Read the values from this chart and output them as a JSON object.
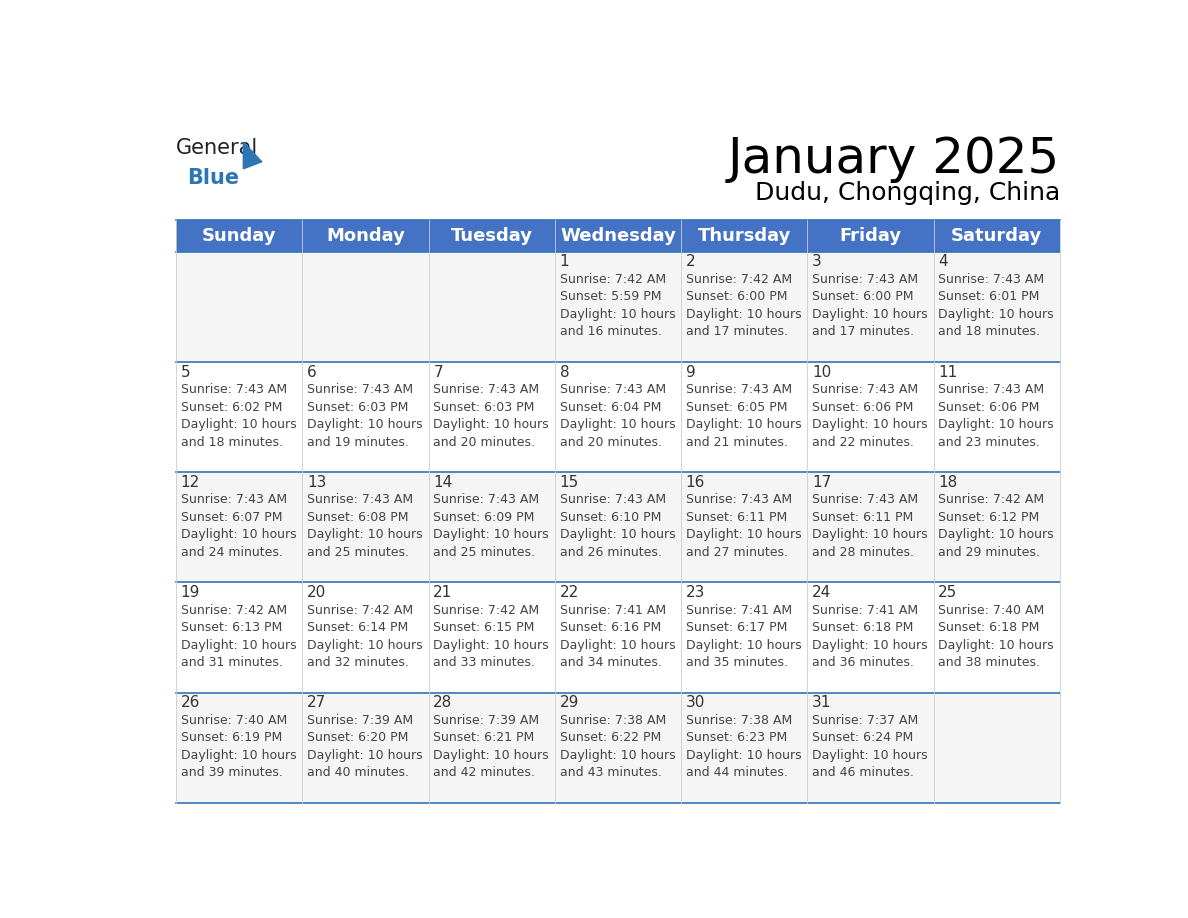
{
  "title": "January 2025",
  "subtitle": "Dudu, Chongqing, China",
  "header_color": "#4472C4",
  "header_text_color": "#FFFFFF",
  "cell_bg_even": "#F5F5F5",
  "cell_bg_odd": "#FFFFFF",
  "day_headers": [
    "Sunday",
    "Monday",
    "Tuesday",
    "Wednesday",
    "Thursday",
    "Friday",
    "Saturday"
  ],
  "title_fontsize": 36,
  "subtitle_fontsize": 18,
  "header_fontsize": 13,
  "cell_fontsize": 9,
  "day_number_fontsize": 11,
  "logo_color1": "#222222",
  "logo_color2": "#2E75B6",
  "logo_triangle_color": "#2E75B6",
  "row_divider_color": "#2E75B6",
  "col_divider_color": "#CCCCCC",
  "weeks": [
    [
      {
        "day": null,
        "text": ""
      },
      {
        "day": null,
        "text": ""
      },
      {
        "day": null,
        "text": ""
      },
      {
        "day": 1,
        "text": "Sunrise: 7:42 AM\nSunset: 5:59 PM\nDaylight: 10 hours\nand 16 minutes."
      },
      {
        "day": 2,
        "text": "Sunrise: 7:42 AM\nSunset: 6:00 PM\nDaylight: 10 hours\nand 17 minutes."
      },
      {
        "day": 3,
        "text": "Sunrise: 7:43 AM\nSunset: 6:00 PM\nDaylight: 10 hours\nand 17 minutes."
      },
      {
        "day": 4,
        "text": "Sunrise: 7:43 AM\nSunset: 6:01 PM\nDaylight: 10 hours\nand 18 minutes."
      }
    ],
    [
      {
        "day": 5,
        "text": "Sunrise: 7:43 AM\nSunset: 6:02 PM\nDaylight: 10 hours\nand 18 minutes."
      },
      {
        "day": 6,
        "text": "Sunrise: 7:43 AM\nSunset: 6:03 PM\nDaylight: 10 hours\nand 19 minutes."
      },
      {
        "day": 7,
        "text": "Sunrise: 7:43 AM\nSunset: 6:03 PM\nDaylight: 10 hours\nand 20 minutes."
      },
      {
        "day": 8,
        "text": "Sunrise: 7:43 AM\nSunset: 6:04 PM\nDaylight: 10 hours\nand 20 minutes."
      },
      {
        "day": 9,
        "text": "Sunrise: 7:43 AM\nSunset: 6:05 PM\nDaylight: 10 hours\nand 21 minutes."
      },
      {
        "day": 10,
        "text": "Sunrise: 7:43 AM\nSunset: 6:06 PM\nDaylight: 10 hours\nand 22 minutes."
      },
      {
        "day": 11,
        "text": "Sunrise: 7:43 AM\nSunset: 6:06 PM\nDaylight: 10 hours\nand 23 minutes."
      }
    ],
    [
      {
        "day": 12,
        "text": "Sunrise: 7:43 AM\nSunset: 6:07 PM\nDaylight: 10 hours\nand 24 minutes."
      },
      {
        "day": 13,
        "text": "Sunrise: 7:43 AM\nSunset: 6:08 PM\nDaylight: 10 hours\nand 25 minutes."
      },
      {
        "day": 14,
        "text": "Sunrise: 7:43 AM\nSunset: 6:09 PM\nDaylight: 10 hours\nand 25 minutes."
      },
      {
        "day": 15,
        "text": "Sunrise: 7:43 AM\nSunset: 6:10 PM\nDaylight: 10 hours\nand 26 minutes."
      },
      {
        "day": 16,
        "text": "Sunrise: 7:43 AM\nSunset: 6:11 PM\nDaylight: 10 hours\nand 27 minutes."
      },
      {
        "day": 17,
        "text": "Sunrise: 7:43 AM\nSunset: 6:11 PM\nDaylight: 10 hours\nand 28 minutes."
      },
      {
        "day": 18,
        "text": "Sunrise: 7:42 AM\nSunset: 6:12 PM\nDaylight: 10 hours\nand 29 minutes."
      }
    ],
    [
      {
        "day": 19,
        "text": "Sunrise: 7:42 AM\nSunset: 6:13 PM\nDaylight: 10 hours\nand 31 minutes."
      },
      {
        "day": 20,
        "text": "Sunrise: 7:42 AM\nSunset: 6:14 PM\nDaylight: 10 hours\nand 32 minutes."
      },
      {
        "day": 21,
        "text": "Sunrise: 7:42 AM\nSunset: 6:15 PM\nDaylight: 10 hours\nand 33 minutes."
      },
      {
        "day": 22,
        "text": "Sunrise: 7:41 AM\nSunset: 6:16 PM\nDaylight: 10 hours\nand 34 minutes."
      },
      {
        "day": 23,
        "text": "Sunrise: 7:41 AM\nSunset: 6:17 PM\nDaylight: 10 hours\nand 35 minutes."
      },
      {
        "day": 24,
        "text": "Sunrise: 7:41 AM\nSunset: 6:18 PM\nDaylight: 10 hours\nand 36 minutes."
      },
      {
        "day": 25,
        "text": "Sunrise: 7:40 AM\nSunset: 6:18 PM\nDaylight: 10 hours\nand 38 minutes."
      }
    ],
    [
      {
        "day": 26,
        "text": "Sunrise: 7:40 AM\nSunset: 6:19 PM\nDaylight: 10 hours\nand 39 minutes."
      },
      {
        "day": 27,
        "text": "Sunrise: 7:39 AM\nSunset: 6:20 PM\nDaylight: 10 hours\nand 40 minutes."
      },
      {
        "day": 28,
        "text": "Sunrise: 7:39 AM\nSunset: 6:21 PM\nDaylight: 10 hours\nand 42 minutes."
      },
      {
        "day": 29,
        "text": "Sunrise: 7:38 AM\nSunset: 6:22 PM\nDaylight: 10 hours\nand 43 minutes."
      },
      {
        "day": 30,
        "text": "Sunrise: 7:38 AM\nSunset: 6:23 PM\nDaylight: 10 hours\nand 44 minutes."
      },
      {
        "day": 31,
        "text": "Sunrise: 7:37 AM\nSunset: 6:24 PM\nDaylight: 10 hours\nand 46 minutes."
      },
      {
        "day": null,
        "text": ""
      }
    ]
  ]
}
